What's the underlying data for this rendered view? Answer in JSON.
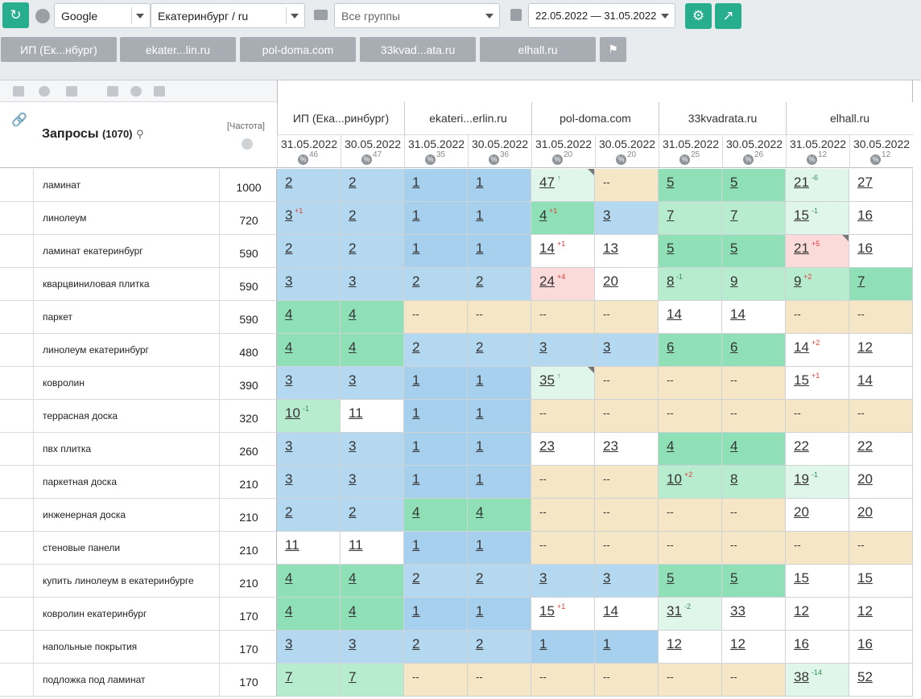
{
  "toolbar": {
    "refresh_icon": "refresh-icon",
    "engine": "Google",
    "region": "Екатеринбург / ru",
    "groups_placeholder": "Все группы",
    "date_range": "22.05.2022 — 31.05.2022",
    "settings_icon": "gear-icon",
    "export_icon": "export-icon"
  },
  "site_tabs": [
    "ИП (Ек...нбург)",
    "ekater...lin.ru",
    "pol-doma.com",
    "33kvad...ata.ru",
    "elhall.ru"
  ],
  "table": {
    "query_header": "Запросы",
    "query_count": "(1070)",
    "freq_header": "[Частота]",
    "sites": [
      "ИП (Ека...ринбург)",
      "ekateri...erlin.ru",
      "pol-doma.com",
      "33kvadrata.ru",
      "elhall.ru"
    ],
    "dates": [
      {
        "d": "31.05.2022",
        "pct": "46"
      },
      {
        "d": "30.05.2022",
        "pct": "47"
      },
      {
        "d": "31.05.2022",
        "pct": "35"
      },
      {
        "d": "30.05.2022",
        "pct": "36"
      },
      {
        "d": "31.05.2022",
        "pct": "20"
      },
      {
        "d": "30.05.2022",
        "pct": "20"
      },
      {
        "d": "31.05.2022",
        "pct": "25"
      },
      {
        "d": "30.05.2022",
        "pct": "26"
      },
      {
        "d": "31.05.2022",
        "pct": "12"
      },
      {
        "d": "30.05.2022",
        "pct": "12"
      }
    ],
    "rows": [
      {
        "q": "ламинат",
        "f": "1000",
        "cells": [
          [
            "2",
            "",
            "blue"
          ],
          [
            "2",
            "",
            "blue"
          ],
          [
            "1",
            "",
            "blue2"
          ],
          [
            "1",
            "",
            "blue2"
          ],
          [
            "47",
            "↑",
            "vlgreen",
            "c"
          ],
          [
            "--",
            "",
            "beige"
          ],
          [
            "5",
            "",
            "green"
          ],
          [
            "5",
            "",
            "green"
          ],
          [
            "21",
            "-6",
            "vlgreen"
          ],
          [
            "27",
            "",
            "white"
          ]
        ]
      },
      {
        "q": "линолеум",
        "f": "720",
        "cells": [
          [
            "3",
            "+1",
            "blue"
          ],
          [
            "2",
            "",
            "blue"
          ],
          [
            "1",
            "",
            "blue2"
          ],
          [
            "1",
            "",
            "blue2"
          ],
          [
            "4",
            "+1",
            "green"
          ],
          [
            "3",
            "",
            "blue"
          ],
          [
            "7",
            "",
            "lgreen"
          ],
          [
            "7",
            "",
            "lgreen"
          ],
          [
            "15",
            "-1",
            "vlgreen"
          ],
          [
            "16",
            "",
            "white"
          ]
        ]
      },
      {
        "q": "ламинат екатеринбург",
        "f": "590",
        "cells": [
          [
            "2",
            "",
            "blue"
          ],
          [
            "2",
            "",
            "blue"
          ],
          [
            "1",
            "",
            "blue2"
          ],
          [
            "1",
            "",
            "blue2"
          ],
          [
            "14",
            "+1",
            "white"
          ],
          [
            "13",
            "",
            "white"
          ],
          [
            "5",
            "",
            "green"
          ],
          [
            "5",
            "",
            "green"
          ],
          [
            "21",
            "+5",
            "pink",
            "c"
          ],
          [
            "16",
            "",
            "white"
          ]
        ]
      },
      {
        "q": "кварцвиниловая плитка",
        "f": "590",
        "cells": [
          [
            "3",
            "",
            "blue"
          ],
          [
            "3",
            "",
            "blue"
          ],
          [
            "2",
            "",
            "blue"
          ],
          [
            "2",
            "",
            "blue"
          ],
          [
            "24",
            "+4",
            "pink"
          ],
          [
            "20",
            "",
            "white"
          ],
          [
            "8",
            "-1",
            "lgreen"
          ],
          [
            "9",
            "",
            "lgreen"
          ],
          [
            "9",
            "+2",
            "lgreen"
          ],
          [
            "7",
            "",
            "green"
          ]
        ]
      },
      {
        "q": "паркет",
        "f": "590",
        "cells": [
          [
            "4",
            "",
            "green"
          ],
          [
            "4",
            "",
            "green"
          ],
          [
            "--",
            "",
            "beige"
          ],
          [
            "--",
            "",
            "beige"
          ],
          [
            "--",
            "",
            "beige"
          ],
          [
            "--",
            "",
            "beige"
          ],
          [
            "14",
            "",
            "white"
          ],
          [
            "14",
            "",
            "white"
          ],
          [
            "--",
            "",
            "beige"
          ],
          [
            "--",
            "",
            "beige"
          ]
        ]
      },
      {
        "q": "линолеум екатеринбург",
        "f": "480",
        "cells": [
          [
            "4",
            "",
            "green"
          ],
          [
            "4",
            "",
            "green"
          ],
          [
            "2",
            "",
            "blue"
          ],
          [
            "2",
            "",
            "blue"
          ],
          [
            "3",
            "",
            "blue"
          ],
          [
            "3",
            "",
            "blue"
          ],
          [
            "6",
            "",
            "green"
          ],
          [
            "6",
            "",
            "green"
          ],
          [
            "14",
            "+2",
            "white"
          ],
          [
            "12",
            "",
            "white"
          ]
        ]
      },
      {
        "q": "ковролин",
        "f": "390",
        "cells": [
          [
            "3",
            "",
            "blue"
          ],
          [
            "3",
            "",
            "blue"
          ],
          [
            "1",
            "",
            "blue2"
          ],
          [
            "1",
            "",
            "blue2"
          ],
          [
            "35",
            "↑",
            "vlgreen",
            "c"
          ],
          [
            "--",
            "",
            "beige"
          ],
          [
            "--",
            "",
            "beige"
          ],
          [
            "--",
            "",
            "beige"
          ],
          [
            "15",
            "+1",
            "white"
          ],
          [
            "14",
            "",
            "white"
          ]
        ]
      },
      {
        "q": "террасная доска",
        "f": "320",
        "cells": [
          [
            "10",
            "-1",
            "lgreen"
          ],
          [
            "11",
            "",
            "white"
          ],
          [
            "1",
            "",
            "blue2"
          ],
          [
            "1",
            "",
            "blue2"
          ],
          [
            "--",
            "",
            "beige"
          ],
          [
            "--",
            "",
            "beige"
          ],
          [
            "--",
            "",
            "beige"
          ],
          [
            "--",
            "",
            "beige"
          ],
          [
            "--",
            "",
            "beige"
          ],
          [
            "--",
            "",
            "beige"
          ]
        ]
      },
      {
        "q": "пвх плитка",
        "f": "260",
        "cells": [
          [
            "3",
            "",
            "blue"
          ],
          [
            "3",
            "",
            "blue"
          ],
          [
            "1",
            "",
            "blue2"
          ],
          [
            "1",
            "",
            "blue2"
          ],
          [
            "23",
            "",
            "white"
          ],
          [
            "23",
            "",
            "white"
          ],
          [
            "4",
            "",
            "green"
          ],
          [
            "4",
            "",
            "green"
          ],
          [
            "22",
            "",
            "white"
          ],
          [
            "22",
            "",
            "white"
          ]
        ]
      },
      {
        "q": "паркетная доска",
        "f": "210",
        "cells": [
          [
            "3",
            "",
            "blue"
          ],
          [
            "3",
            "",
            "blue"
          ],
          [
            "1",
            "",
            "blue2"
          ],
          [
            "1",
            "",
            "blue2"
          ],
          [
            "--",
            "",
            "beige"
          ],
          [
            "--",
            "",
            "beige"
          ],
          [
            "10",
            "+2",
            "lgreen"
          ],
          [
            "8",
            "",
            "lgreen"
          ],
          [
            "19",
            "-1",
            "vlgreen"
          ],
          [
            "20",
            "",
            "white"
          ]
        ]
      },
      {
        "q": "инженерная доска",
        "f": "210",
        "cells": [
          [
            "2",
            "",
            "blue"
          ],
          [
            "2",
            "",
            "blue"
          ],
          [
            "4",
            "",
            "green"
          ],
          [
            "4",
            "",
            "green"
          ],
          [
            "--",
            "",
            "beige"
          ],
          [
            "--",
            "",
            "beige"
          ],
          [
            "--",
            "",
            "beige"
          ],
          [
            "--",
            "",
            "beige"
          ],
          [
            "20",
            "",
            "white"
          ],
          [
            "20",
            "",
            "white"
          ]
        ]
      },
      {
        "q": "стеновые панели",
        "f": "210",
        "cells": [
          [
            "11",
            "",
            "white"
          ],
          [
            "11",
            "",
            "white"
          ],
          [
            "1",
            "",
            "blue2"
          ],
          [
            "1",
            "",
            "blue2"
          ],
          [
            "--",
            "",
            "beige"
          ],
          [
            "--",
            "",
            "beige"
          ],
          [
            "--",
            "",
            "beige"
          ],
          [
            "--",
            "",
            "beige"
          ],
          [
            "--",
            "",
            "beige"
          ],
          [
            "--",
            "",
            "beige"
          ]
        ]
      },
      {
        "q": "купить линолеум в екатеринбурге",
        "f": "210",
        "cells": [
          [
            "4",
            "",
            "green"
          ],
          [
            "4",
            "",
            "green"
          ],
          [
            "2",
            "",
            "blue"
          ],
          [
            "2",
            "",
            "blue"
          ],
          [
            "3",
            "",
            "blue"
          ],
          [
            "3",
            "",
            "blue"
          ],
          [
            "5",
            "",
            "green"
          ],
          [
            "5",
            "",
            "green"
          ],
          [
            "15",
            "",
            "white"
          ],
          [
            "15",
            "",
            "white"
          ]
        ]
      },
      {
        "q": "ковролин екатеринбург",
        "f": "170",
        "cells": [
          [
            "4",
            "",
            "green"
          ],
          [
            "4",
            "",
            "green"
          ],
          [
            "1",
            "",
            "blue2"
          ],
          [
            "1",
            "",
            "blue2"
          ],
          [
            "15",
            "+1",
            "white"
          ],
          [
            "14",
            "",
            "white"
          ],
          [
            "31",
            "-2",
            "vlgreen"
          ],
          [
            "33",
            "",
            "white"
          ],
          [
            "12",
            "",
            "white"
          ],
          [
            "12",
            "",
            "white"
          ]
        ]
      },
      {
        "q": "напольные покрытия",
        "f": "170",
        "cells": [
          [
            "3",
            "",
            "blue"
          ],
          [
            "3",
            "",
            "blue"
          ],
          [
            "2",
            "",
            "blue"
          ],
          [
            "2",
            "",
            "blue"
          ],
          [
            "1",
            "",
            "blue2"
          ],
          [
            "1",
            "",
            "blue2"
          ],
          [
            "12",
            "",
            "white"
          ],
          [
            "12",
            "",
            "white"
          ],
          [
            "16",
            "",
            "white"
          ],
          [
            "16",
            "",
            "white"
          ]
        ]
      },
      {
        "q": "подложка под ламинат",
        "f": "170",
        "cells": [
          [
            "7",
            "",
            "lgreen"
          ],
          [
            "7",
            "",
            "lgreen"
          ],
          [
            "--",
            "",
            "beige"
          ],
          [
            "--",
            "",
            "beige"
          ],
          [
            "--",
            "",
            "beige"
          ],
          [
            "--",
            "",
            "beige"
          ],
          [
            "--",
            "",
            "beige"
          ],
          [
            "--",
            "",
            "beige"
          ],
          [
            "38",
            "-14",
            "vlgreen"
          ],
          [
            "52",
            "",
            "white"
          ]
        ]
      }
    ]
  }
}
